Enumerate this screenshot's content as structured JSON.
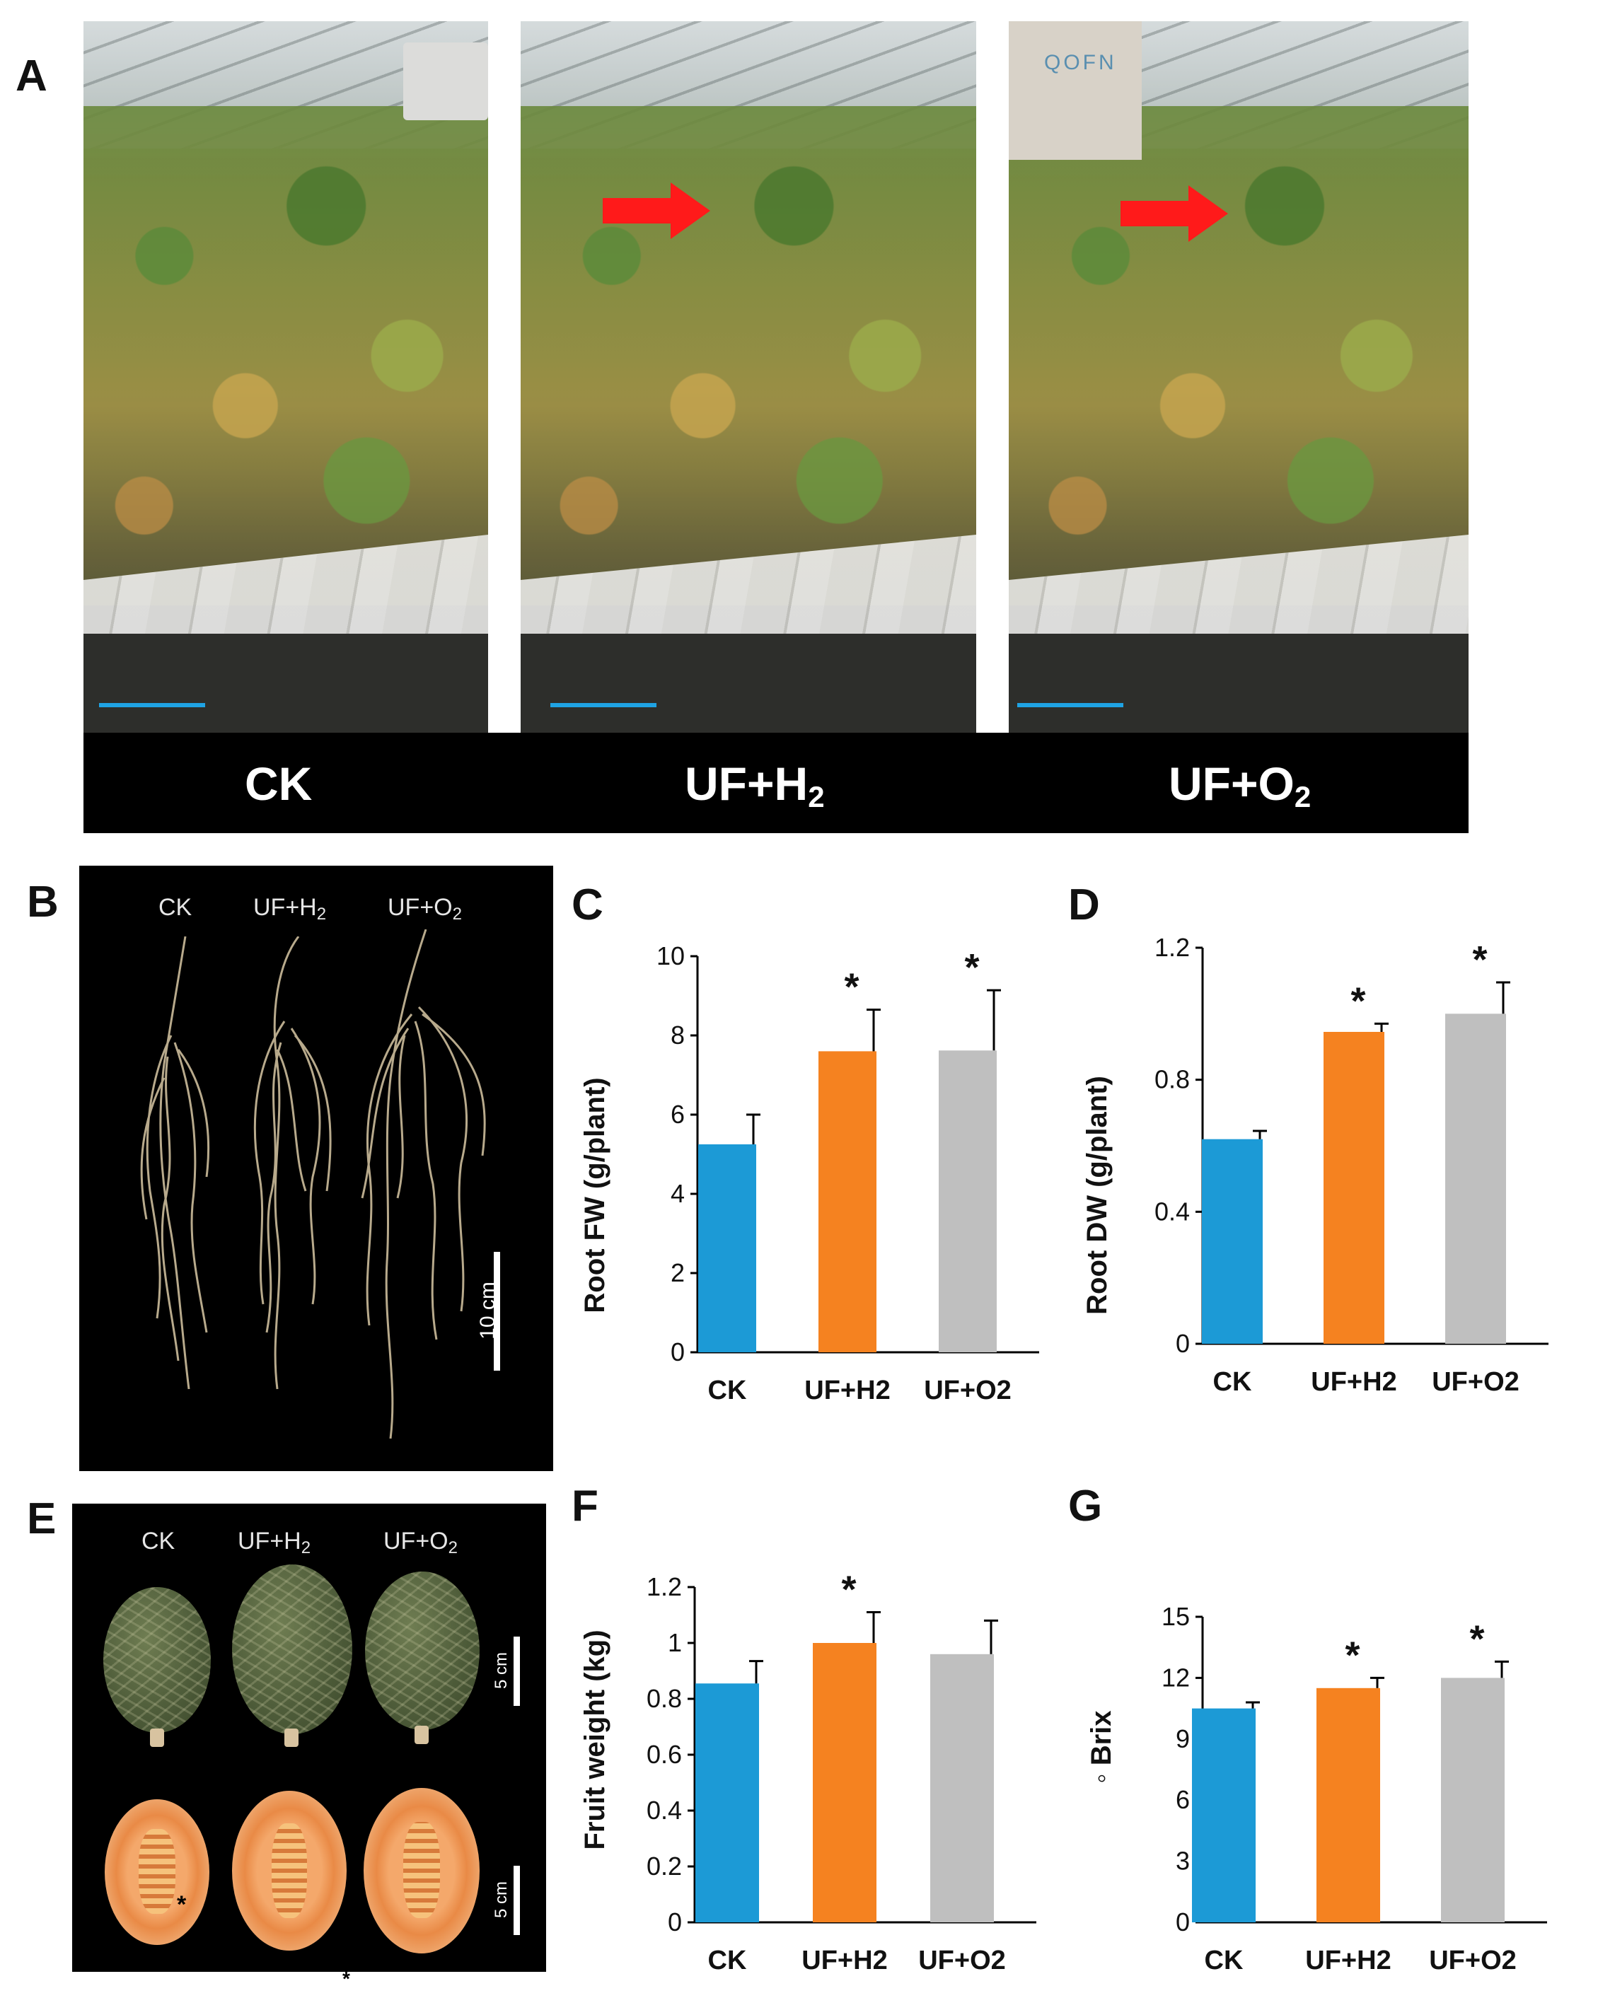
{
  "panels": {
    "A": {
      "letter": "A",
      "labels": [
        "CK",
        "UF+H",
        "UF+O"
      ],
      "subscripts": [
        "",
        "2",
        "2"
      ],
      "sign_text": "QOFN"
    },
    "B": {
      "letter": "B",
      "labels": [
        "CK",
        "UF+H",
        "UF+O"
      ],
      "subscripts": [
        "",
        "2",
        "2"
      ],
      "scale_label": "10 cm"
    },
    "E": {
      "letter": "E",
      "labels": [
        "CK",
        "UF+H",
        "UF+O"
      ],
      "subscripts": [
        "",
        "2",
        "2"
      ],
      "scale_label_top": "5 cm",
      "scale_label_bottom": "5 cm",
      "marks": [
        "*",
        "*"
      ]
    }
  },
  "colors": {
    "CK": "#1c9ad6",
    "UF+H2": "#f58220",
    "UF+O2": "#bfbfbf",
    "scale_bar": "#1fa3e4",
    "arrow": "#ff1a1a"
  },
  "chart_data": [
    {
      "id": "C",
      "letter": "C",
      "type": "bar",
      "categories": [
        "CK",
        "UF+H2",
        "UF+O2"
      ],
      "values": [
        5.25,
        7.6,
        7.62
      ],
      "errors": [
        0.75,
        1.05,
        1.52
      ],
      "significance": [
        "",
        "*",
        "*"
      ],
      "ylabel": "Root FW (g/plant)",
      "ylim": [
        0,
        10
      ],
      "yticks": [
        0,
        2,
        4,
        6,
        8,
        10
      ],
      "tick_labels": [
        "0",
        "2",
        "4",
        "6",
        "8",
        "10"
      ]
    },
    {
      "id": "D",
      "letter": "D",
      "type": "bar",
      "categories": [
        "CK",
        "UF+H2",
        "UF+O2"
      ],
      "values": [
        0.62,
        0.945,
        1.0
      ],
      "errors": [
        0.025,
        0.025,
        0.095
      ],
      "significance": [
        "",
        "*",
        "*"
      ],
      "ylabel": "Root DW (g/plant)",
      "ylim": [
        0,
        1.2
      ],
      "yticks": [
        0,
        0.4,
        0.8,
        1.2
      ],
      "tick_labels": [
        "0",
        "0.4",
        "0.8",
        "1.2"
      ]
    },
    {
      "id": "F",
      "letter": "F",
      "type": "bar",
      "categories": [
        "CK",
        "UF+H2",
        "UF+O2"
      ],
      "values": [
        0.855,
        1.0,
        0.96
      ],
      "errors": [
        0.08,
        0.11,
        0.12
      ],
      "significance": [
        "",
        "*",
        ""
      ],
      "ylabel": "Fruit weight (kg)",
      "ylim": [
        0,
        1.2
      ],
      "yticks": [
        0,
        0.2,
        0.4,
        0.6,
        0.8,
        1.0,
        1.2
      ],
      "tick_labels": [
        "0",
        "0.2",
        "0.4",
        "0.6",
        "0.8",
        "1",
        "1.2"
      ]
    },
    {
      "id": "G",
      "letter": "G",
      "type": "bar",
      "categories": [
        "CK",
        "UF+H2",
        "UF+O2"
      ],
      "values": [
        10.5,
        11.5,
        12.0
      ],
      "errors": [
        0.3,
        0.5,
        0.8
      ],
      "significance": [
        "",
        "*",
        "*"
      ],
      "ylabel": "◦ Brix",
      "ylim": [
        0,
        15
      ],
      "yticks": [
        0,
        3,
        6,
        9,
        12,
        15
      ],
      "tick_labels": [
        "0",
        "3",
        "6",
        "9",
        "12",
        "15"
      ]
    }
  ]
}
